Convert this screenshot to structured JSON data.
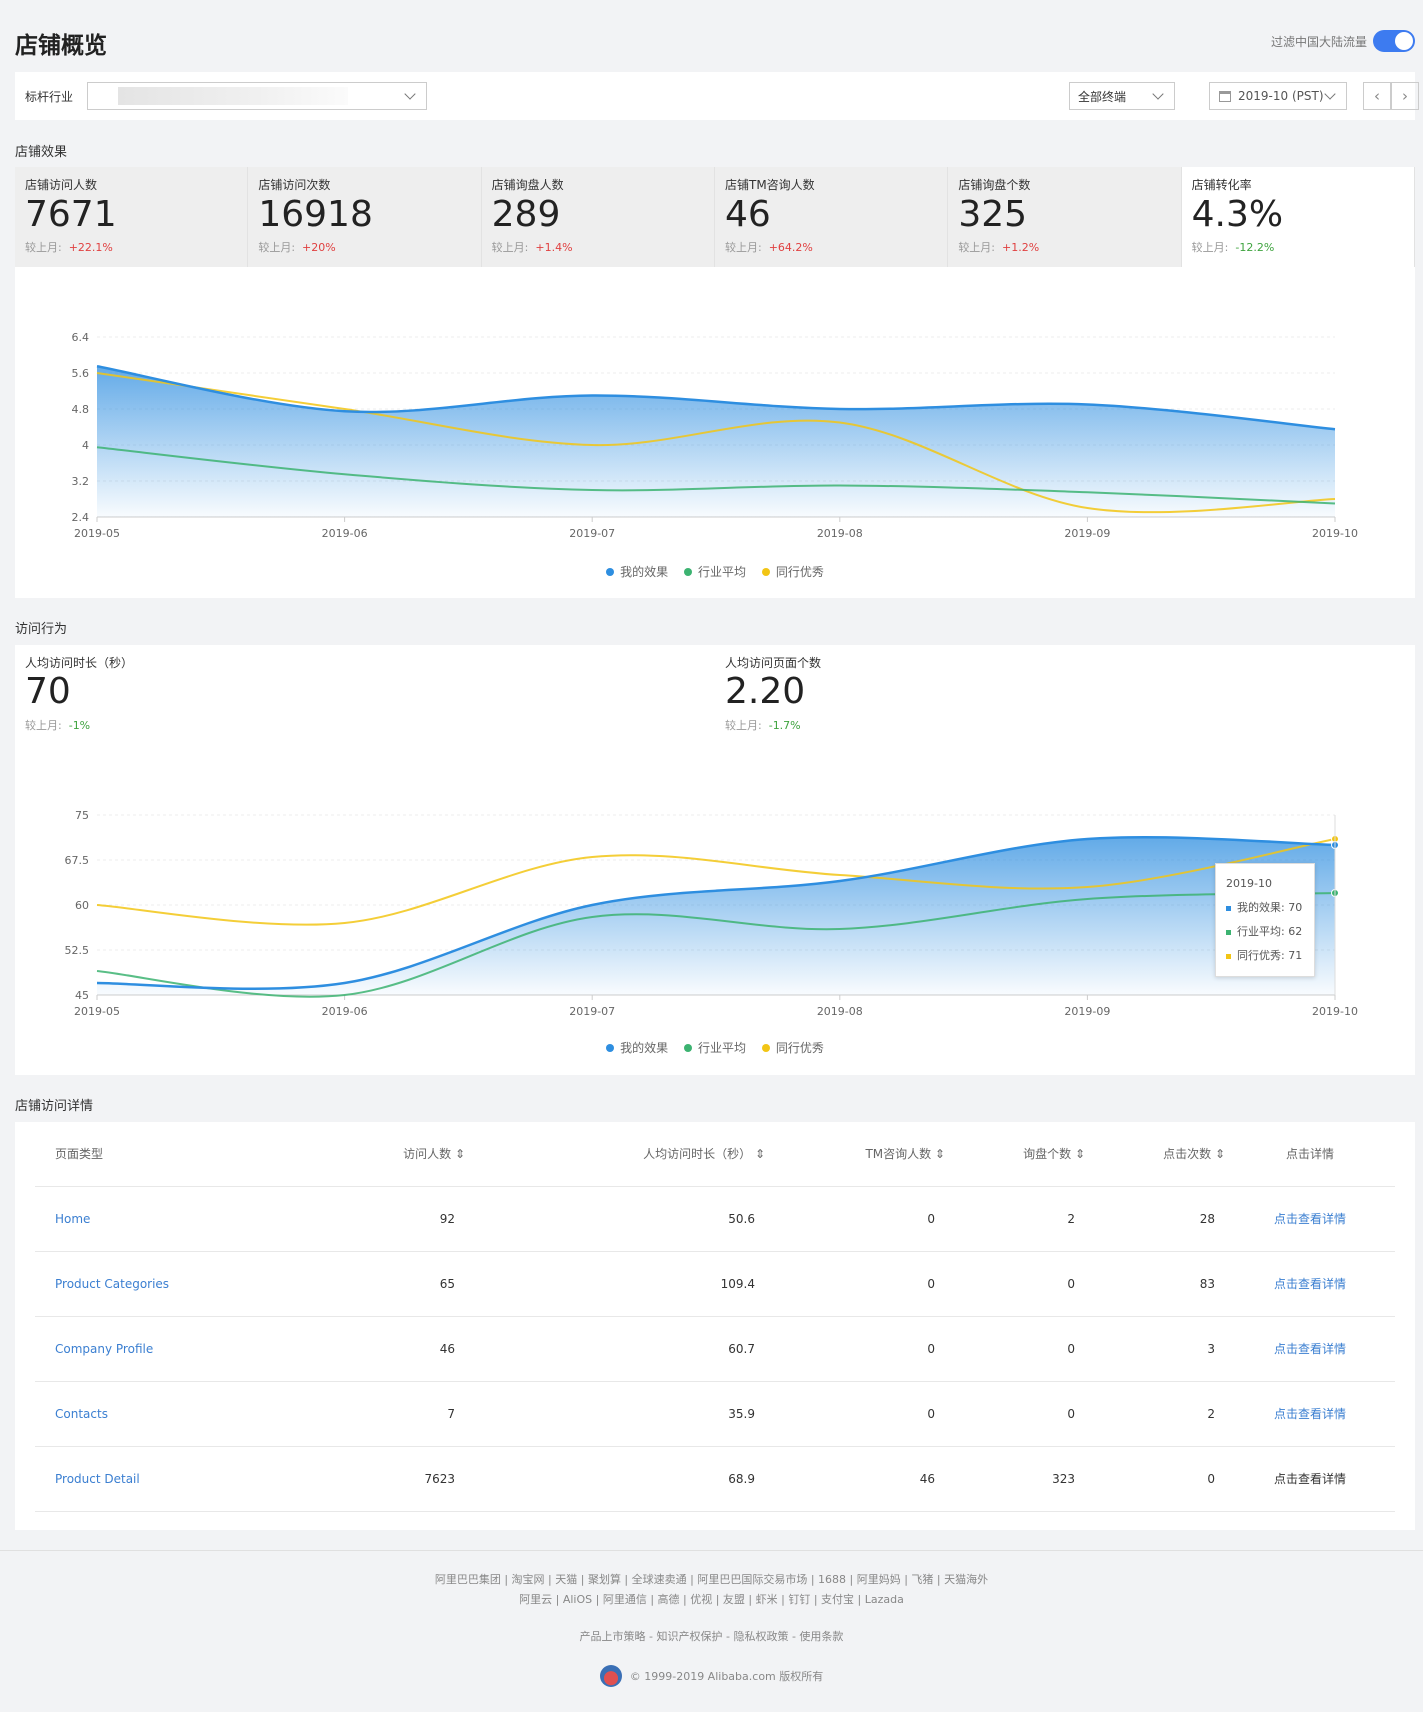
{
  "header": {
    "title": "店铺概览",
    "toggle_label": "过滤中国大陆流量"
  },
  "filters": {
    "industry_label": "标杆行业",
    "terminal": "全部终端",
    "date": "2019-10 (PST)",
    "prev": "‹",
    "next": "›"
  },
  "section1": {
    "title": "店铺效果"
  },
  "kpis": [
    {
      "label": "店铺访问人数",
      "value": "7671",
      "cmp_label": "较上月:",
      "cmp": "+22.1%",
      "dir": "up"
    },
    {
      "label": "店铺访问次数",
      "value": "16918",
      "cmp_label": "较上月:",
      "cmp": "+20%",
      "dir": "up"
    },
    {
      "label": "店铺询盘人数",
      "value": "289",
      "cmp_label": "较上月:",
      "cmp": "+1.4%",
      "dir": "up"
    },
    {
      "label": "店铺TM咨询人数",
      "value": "46",
      "cmp_label": "较上月:",
      "cmp": "+64.2%",
      "dir": "up"
    },
    {
      "label": "店铺询盘个数",
      "value": "325",
      "cmp_label": "较上月:",
      "cmp": "+1.2%",
      "dir": "up"
    },
    {
      "label": "店铺转化率",
      "value": "4.3%",
      "cmp_label": "较上月:",
      "cmp": "-12.2%",
      "dir": "down"
    }
  ],
  "section2": {
    "title": "访问行为"
  },
  "behavior": [
    {
      "label": "人均访问时长（秒）",
      "value": "70",
      "cmp_label": "较上月:",
      "cmp": "-1%"
    },
    {
      "label": "人均访问页面个数",
      "value": "2.20",
      "cmp_label": "较上月:",
      "cmp": "-1.7%"
    }
  ],
  "legend": {
    "mine": "我的效果",
    "industry": "行业平均",
    "peer": "同行优秀"
  },
  "colors": {
    "mine": "#2e8ee0",
    "industry": "#3cb371",
    "peer": "#f2c515",
    "up": "#e04040",
    "down": "#3ea33e",
    "link": "#3b7fd1"
  },
  "tooltip": {
    "title": "2019-10",
    "mine": "我的效果: 70",
    "industry": "行业平均: 62",
    "peer": "同行优秀: 71"
  },
  "chart_data": [
    {
      "type": "area",
      "x": [
        "2019-05",
        "2019-06",
        "2019-07",
        "2019-08",
        "2019-09",
        "2019-10"
      ],
      "yticks": [
        "6.4",
        "5.6",
        "4.8",
        "4",
        "3.2",
        "2.4"
      ],
      "ylim": [
        2.4,
        6.4
      ],
      "series": [
        {
          "name": "我的效果",
          "values": [
            5.75,
            4.75,
            5.1,
            4.8,
            4.9,
            4.35
          ]
        },
        {
          "name": "行业平均",
          "values": [
            3.95,
            3.35,
            3.0,
            3.1,
            2.95,
            2.7
          ]
        },
        {
          "name": "同行优秀",
          "values": [
            5.6,
            4.8,
            4.0,
            4.5,
            2.6,
            2.8
          ]
        }
      ]
    },
    {
      "type": "area",
      "x": [
        "2019-05",
        "2019-06",
        "2019-07",
        "2019-08",
        "2019-09",
        "2019-10"
      ],
      "yticks": [
        "75",
        "67.5",
        "60",
        "52.5",
        "45"
      ],
      "ylim": [
        45,
        75
      ],
      "series": [
        {
          "name": "我的效果",
          "values": [
            47,
            47,
            60,
            64,
            71,
            70
          ]
        },
        {
          "name": "行业平均",
          "values": [
            49,
            45,
            58,
            56,
            61,
            62
          ]
        },
        {
          "name": "同行优秀",
          "values": [
            60,
            57,
            68,
            65,
            63,
            71
          ]
        }
      ]
    }
  ],
  "section3": {
    "title": "店铺访问详情"
  },
  "table": {
    "headers": [
      "页面类型",
      "访问人数 ⇕",
      "人均访问时长（秒） ⇕",
      "TM咨询人数 ⇕",
      "询盘个数 ⇕",
      "点击次数 ⇕",
      "点击详情"
    ],
    "rows": [
      [
        "Home",
        "92",
        "50.6",
        "0",
        "2",
        "28",
        "点击查看详情"
      ],
      [
        "Product Categories",
        "65",
        "109.4",
        "0",
        "0",
        "83",
        "点击查看详情"
      ],
      [
        "Company Profile",
        "46",
        "60.7",
        "0",
        "0",
        "3",
        "点击查看详情"
      ],
      [
        "Contacts",
        "7",
        "35.9",
        "0",
        "0",
        "2",
        "点击查看详情"
      ],
      [
        "Product Detail",
        "7623",
        "68.9",
        "46",
        "323",
        "0",
        "点击查看详情"
      ]
    ]
  },
  "footer": {
    "line1": "阿里巴巴集团 | 淘宝网 | 天猫 | 聚划算 | 全球速卖通 | 阿里巴巴国际交易市场 | 1688 | 阿里妈妈 | 飞猪 | 天猫海外",
    "line2": "阿里云 | AliOS | 阿里通信 | 高德 | 优视 | 友盟 | 虾米 | 钉钉 | 支付宝 | Lazada",
    "line3": "产品上市策略 - 知识产权保护 - 隐私权政策 - 使用条款",
    "copyright": "© 1999-2019 Alibaba.com 版权所有"
  }
}
